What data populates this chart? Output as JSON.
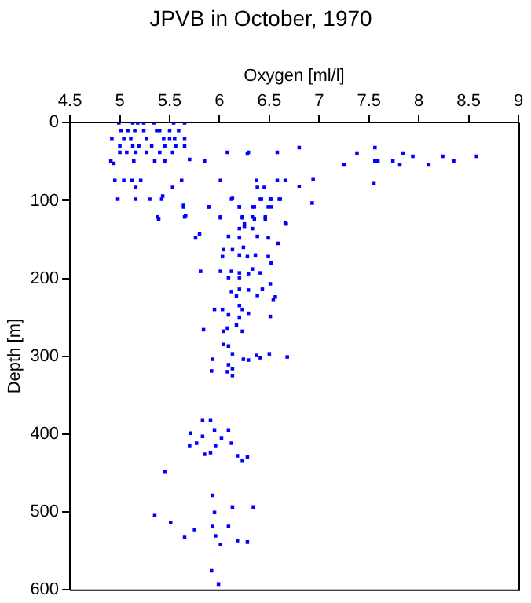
{
  "chart_data": {
    "type": "scatter",
    "title": "JPVB in October, 1970",
    "xlabel": "Oxygen [ml/l]",
    "ylabel": "Depth [m]",
    "xlim": [
      4.5,
      9
    ],
    "xticks": [
      4.5,
      5,
      5.5,
      6,
      6.5,
      7,
      7.5,
      8,
      8.5,
      9
    ],
    "ylim": [
      600,
      0
    ],
    "yticks": [
      0,
      100,
      200,
      300,
      400,
      500,
      600
    ],
    "grid": false,
    "legend": false,
    "marker": "square",
    "series": [
      {
        "color": "#0000ff",
        "x": [
          4.99,
          5.13,
          5.18,
          5.24,
          5.34,
          5.54,
          5.65,
          5.01,
          5.08,
          5.15,
          5.24,
          5.37,
          5.4,
          5.5,
          5.59,
          4.92,
          5.04,
          5.11,
          5.27,
          5.44,
          5.5,
          5.55,
          5.65,
          5.0,
          5.13,
          5.19,
          5.32,
          5.45,
          5.56,
          5.65,
          5.0,
          5.07,
          5.16,
          5.27,
          5.4,
          5.53,
          6.08,
          6.29,
          6.58,
          4.91,
          5.14,
          5.35,
          5.45,
          5.7,
          5.85,
          4.94,
          4.95,
          5.04,
          5.12,
          5.21,
          5.62,
          6.01,
          6.37,
          6.58,
          6.66,
          5.16,
          5.53,
          6.38,
          6.45,
          4.98,
          5.16,
          5.3,
          5.42,
          6.12,
          6.42,
          6.52,
          6.6,
          5.64,
          5.89,
          6.2,
          6.33,
          6.49,
          5.38,
          5.65,
          6.01,
          6.23,
          6.33,
          6.46,
          6.25,
          6.67,
          7.56,
          6.8,
          7.38,
          7.84,
          7.94,
          8.24,
          8.58,
          7.56,
          7.59,
          7.74,
          8.35,
          7.25,
          7.81,
          8.1,
          6.94,
          7.55,
          6.8,
          6.28,
          5.43,
          5.64,
          5.89,
          6.13,
          6.41,
          6.51,
          6.61,
          6.93,
          6.2,
          6.35,
          6.52,
          5.39,
          5.66,
          6.01,
          6.23,
          6.35,
          6.46,
          6.66,
          6.2,
          6.25,
          6.33,
          5.76,
          5.8,
          6.09,
          6.2,
          6.38,
          6.49,
          6.59,
          6.24,
          6.04,
          6.13,
          6.03,
          6.2,
          6.28,
          6.36,
          6.49,
          6.52,
          6.33,
          5.81,
          6.01,
          6.12,
          6.2,
          6.29,
          6.41,
          6.09,
          6.2,
          6.51,
          6.12,
          6.2,
          6.29,
          6.43,
          6.17,
          6.38,
          6.56,
          6.54,
          6.2,
          5.95,
          6.03,
          6.23,
          6.09,
          6.2,
          6.29,
          6.51,
          6.17,
          5.84,
          6.04,
          6.08,
          6.23,
          6.04,
          6.09,
          6.13,
          5.93,
          6.24,
          6.29,
          6.37,
          6.41,
          6.5,
          6.68,
          6.09,
          6.13,
          5.92,
          6.08,
          6.13,
          5.83,
          5.91,
          5.71,
          5.95,
          6.09,
          5.83,
          6.02,
          5.7,
          5.77,
          5.96,
          6.12,
          5.85,
          5.91,
          6.18,
          6.28,
          6.23,
          5.45,
          5.93,
          5.95,
          6.13,
          6.34,
          5.35,
          5.51,
          5.75,
          5.93,
          6.09,
          5.65,
          5.96,
          6.18,
          6.28,
          6.01,
          5.92,
          5.99
        ],
        "values": [
          0,
          0,
          0,
          0,
          0,
          0,
          0,
          10,
          10,
          10,
          10,
          10,
          10,
          10,
          10,
          20,
          20,
          20,
          20,
          20,
          20,
          20,
          20,
          30,
          30,
          30,
          30,
          30,
          30,
          30,
          38,
          38,
          38,
          38,
          38,
          38,
          38,
          38,
          38,
          49,
          49,
          49,
          49,
          47,
          49,
          52,
          74,
          74,
          74,
          74,
          74,
          74,
          74,
          74,
          74,
          83,
          83,
          83,
          83,
          98,
          98,
          98,
          98,
          98,
          98,
          98,
          98,
          108,
          108,
          108,
          108,
          108,
          121,
          121,
          121,
          121,
          121,
          121,
          130,
          130,
          32,
          32,
          39,
          39,
          43,
          43,
          43,
          49,
          49,
          49,
          49,
          54,
          54,
          54,
          73,
          78,
          82,
          40,
          94,
          106,
          108,
          97,
          98,
          98,
          98,
          103,
          108,
          108,
          108,
          124,
          120,
          122,
          122,
          124,
          124,
          129,
          136,
          134,
          136,
          148,
          143,
          146,
          148,
          146,
          148,
          155,
          160,
          163,
          163,
          172,
          170,
          172,
          170,
          172,
          180,
          188,
          191,
          191,
          191,
          193,
          194,
          193,
          199,
          199,
          207,
          217,
          214,
          215,
          214,
          223,
          222,
          224,
          228,
          235,
          240,
          240,
          240,
          247,
          250,
          245,
          249,
          260,
          266,
          268,
          264,
          268,
          285,
          287,
          297,
          304,
          304,
          305,
          299,
          302,
          297,
          301,
          311,
          316,
          319,
          320,
          325,
          383,
          383,
          399,
          395,
          395,
          403,
          405,
          415,
          412,
          415,
          412,
          426,
          424,
          428,
          430,
          435,
          449,
          479,
          501,
          494,
          494,
          505,
          514,
          523,
          519,
          519,
          533,
          531,
          537,
          539,
          542,
          576,
          593
        ]
      }
    ]
  }
}
